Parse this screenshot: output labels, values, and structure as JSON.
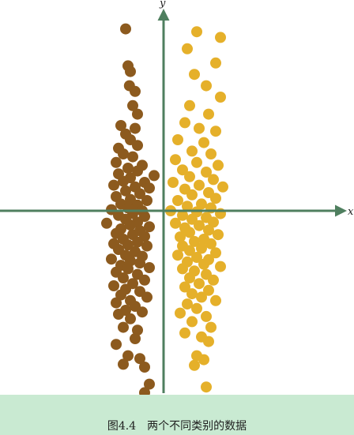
{
  "caption": "图4.4　两个不同类别的数据",
  "chart_data": {
    "type": "scatter",
    "xlabel": "x",
    "ylabel": "y",
    "xlim": [
      -3.0,
      3.0
    ],
    "ylim": [
      -3.2,
      3.4
    ],
    "grid": false,
    "legend": "none",
    "axis_color": "#4f7f5f",
    "series": [
      {
        "color": "#8c5a1e",
        "points": [
          [
            -0.8,
            3.2
          ],
          [
            -0.75,
            2.55
          ],
          [
            -0.7,
            2.45
          ],
          [
            -0.72,
            2.2
          ],
          [
            -0.6,
            2.1
          ],
          [
            -0.65,
            1.85
          ],
          [
            -0.55,
            1.7
          ],
          [
            -0.9,
            1.5
          ],
          [
            -0.6,
            1.45
          ],
          [
            -0.8,
            1.35
          ],
          [
            -0.7,
            1.25
          ],
          [
            -0.55,
            1.15
          ],
          [
            -0.95,
            1.1
          ],
          [
            -0.85,
            1.0
          ],
          [
            -0.65,
            0.95
          ],
          [
            -1.0,
            0.85
          ],
          [
            -0.45,
            0.8
          ],
          [
            -0.75,
            0.75
          ],
          [
            -0.55,
            0.7
          ],
          [
            -0.95,
            0.65
          ],
          [
            -0.2,
            0.62
          ],
          [
            -0.7,
            0.58
          ],
          [
            -0.85,
            0.52
          ],
          [
            -0.4,
            0.5
          ],
          [
            -1.05,
            0.45
          ],
          [
            -0.6,
            0.42
          ],
          [
            -0.3,
            0.4
          ],
          [
            -0.8,
            0.35
          ],
          [
            -0.5,
            0.3
          ],
          [
            -1.0,
            0.25
          ],
          [
            -0.7,
            0.2
          ],
          [
            -0.35,
            0.18
          ],
          [
            -0.9,
            0.12
          ],
          [
            -0.55,
            0.1
          ],
          [
            -0.75,
            0.05
          ],
          [
            -1.1,
            0.02
          ],
          [
            -0.45,
            0.0
          ],
          [
            -0.65,
            -0.05
          ],
          [
            -0.95,
            -0.08
          ],
          [
            -0.4,
            -0.1
          ],
          [
            -0.8,
            -0.15
          ],
          [
            -0.55,
            -0.2
          ],
          [
            -1.2,
            -0.22
          ],
          [
            -0.7,
            -0.25
          ],
          [
            -0.3,
            -0.28
          ],
          [
            -0.9,
            -0.32
          ],
          [
            -0.5,
            -0.35
          ],
          [
            -1.0,
            -0.4
          ],
          [
            -0.65,
            -0.42
          ],
          [
            -0.4,
            -0.45
          ],
          [
            -0.85,
            -0.5
          ],
          [
            -0.55,
            -0.55
          ],
          [
            -1.05,
            -0.58
          ],
          [
            -0.75,
            -0.6
          ],
          [
            -0.35,
            -0.62
          ],
          [
            -0.95,
            -0.68
          ],
          [
            -0.6,
            -0.72
          ],
          [
            -0.8,
            -0.78
          ],
          [
            -0.45,
            -0.8
          ],
          [
            -1.1,
            -0.85
          ],
          [
            -0.7,
            -0.88
          ],
          [
            -0.5,
            -0.92
          ],
          [
            -0.9,
            -0.96
          ],
          [
            -0.3,
            -1.0
          ],
          [
            -0.75,
            -1.02
          ],
          [
            -1.0,
            -1.08
          ],
          [
            -0.55,
            -1.12
          ],
          [
            -0.85,
            -1.18
          ],
          [
            -0.4,
            -1.22
          ],
          [
            -0.65,
            -1.28
          ],
          [
            -1.05,
            -1.32
          ],
          [
            -0.8,
            -1.38
          ],
          [
            -0.5,
            -1.42
          ],
          [
            -0.9,
            -1.48
          ],
          [
            -0.35,
            -1.52
          ],
          [
            -0.7,
            -1.58
          ],
          [
            -1.0,
            -1.62
          ],
          [
            -0.6,
            -1.68
          ],
          [
            -0.8,
            -1.75
          ],
          [
            -0.45,
            -1.78
          ],
          [
            -0.95,
            -1.82
          ],
          [
            -0.7,
            -1.9
          ],
          [
            -0.85,
            -2.05
          ],
          [
            -0.55,
            -2.1
          ],
          [
            -0.6,
            -2.25
          ],
          [
            -1.0,
            -2.35
          ],
          [
            -0.75,
            -2.55
          ],
          [
            -0.5,
            -2.6
          ],
          [
            -0.85,
            -2.7
          ],
          [
            -0.4,
            -2.75
          ],
          [
            -0.3,
            -3.05
          ],
          [
            -0.4,
            -3.2
          ]
        ]
      },
      {
        "color": "#e5b02a",
        "points": [
          [
            0.7,
            3.15
          ],
          [
            1.2,
            3.05
          ],
          [
            0.5,
            2.85
          ],
          [
            1.1,
            2.6
          ],
          [
            0.65,
            2.4
          ],
          [
            0.9,
            2.2
          ],
          [
            1.2,
            2.0
          ],
          [
            0.55,
            1.85
          ],
          [
            0.95,
            1.7
          ],
          [
            0.45,
            1.55
          ],
          [
            0.75,
            1.45
          ],
          [
            1.1,
            1.4
          ],
          [
            0.3,
            1.25
          ],
          [
            0.85,
            1.2
          ],
          [
            0.6,
            1.05
          ],
          [
            1.0,
            1.0
          ],
          [
            0.25,
            0.9
          ],
          [
            0.7,
            0.85
          ],
          [
            1.15,
            0.8
          ],
          [
            0.4,
            0.72
          ],
          [
            0.9,
            0.68
          ],
          [
            0.55,
            0.6
          ],
          [
            1.05,
            0.55
          ],
          [
            0.2,
            0.5
          ],
          [
            0.75,
            0.45
          ],
          [
            1.25,
            0.42
          ],
          [
            0.45,
            0.38
          ],
          [
            0.95,
            0.32
          ],
          [
            0.6,
            0.28
          ],
          [
            1.1,
            0.22
          ],
          [
            0.3,
            0.18
          ],
          [
            0.8,
            0.12
          ],
          [
            0.5,
            0.08
          ],
          [
            1.0,
            0.05
          ],
          [
            0.15,
            0.0
          ],
          [
            0.7,
            -0.02
          ],
          [
            1.2,
            -0.05
          ],
          [
            0.4,
            -0.08
          ],
          [
            0.9,
            -0.12
          ],
          [
            0.6,
            -0.15
          ],
          [
            1.05,
            -0.2
          ],
          [
            0.25,
            -0.22
          ],
          [
            0.75,
            -0.26
          ],
          [
            0.45,
            -0.3
          ],
          [
            0.95,
            -0.34
          ],
          [
            0.55,
            -0.38
          ],
          [
            1.15,
            -0.42
          ],
          [
            0.35,
            -0.46
          ],
          [
            0.85,
            -0.5
          ],
          [
            0.65,
            -0.54
          ],
          [
            1.0,
            -0.58
          ],
          [
            0.4,
            -0.62
          ],
          [
            0.8,
            -0.66
          ],
          [
            0.55,
            -0.7
          ],
          [
            1.1,
            -0.74
          ],
          [
            0.3,
            -0.78
          ],
          [
            0.7,
            -0.82
          ],
          [
            0.95,
            -0.86
          ],
          [
            0.5,
            -0.9
          ],
          [
            0.85,
            -0.94
          ],
          [
            1.2,
            -0.98
          ],
          [
            0.4,
            -1.02
          ],
          [
            0.65,
            -1.06
          ],
          [
            0.9,
            -1.12
          ],
          [
            0.55,
            -1.18
          ],
          [
            1.05,
            -1.22
          ],
          [
            0.75,
            -1.28
          ],
          [
            0.45,
            -1.34
          ],
          [
            0.95,
            -1.4
          ],
          [
            0.6,
            -1.46
          ],
          [
            0.8,
            -1.52
          ],
          [
            1.1,
            -1.58
          ],
          [
            0.5,
            -1.64
          ],
          [
            0.7,
            -1.72
          ],
          [
            0.35,
            -1.8
          ],
          [
            0.9,
            -1.86
          ],
          [
            0.6,
            -1.95
          ],
          [
            1.0,
            -2.05
          ],
          [
            0.45,
            -2.15
          ],
          [
            0.8,
            -2.22
          ],
          [
            0.95,
            -2.3
          ],
          [
            0.7,
            -2.55
          ],
          [
            0.85,
            -2.62
          ],
          [
            0.65,
            -2.72
          ],
          [
            0.9,
            -3.1
          ]
        ]
      }
    ]
  }
}
